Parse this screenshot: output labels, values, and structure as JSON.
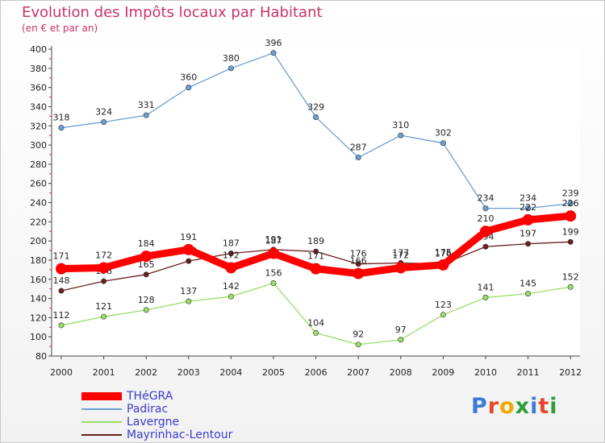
{
  "header": {
    "title": "Evolution des Impôts locaux par Habitant",
    "subtitle": "(en € et par an)"
  },
  "logo": {
    "text": "Proxiti",
    "colors": [
      "#3a7bd5",
      "#e8452c",
      "#f2a800",
      "#2e9e3a",
      "#3a7bd5",
      "#e8452c",
      "#2e9e3a"
    ]
  },
  "chart_data": {
    "type": "line",
    "title": "Evolution des Impôts locaux par Habitant",
    "subtitle": "(en € et par an)",
    "xlabel": "",
    "ylabel": "",
    "categories": [
      "2000",
      "2001",
      "2002",
      "2003",
      "2004",
      "2005",
      "2006",
      "2007",
      "2008",
      "2009",
      "2010",
      "2011",
      "2012"
    ],
    "ylim": [
      80,
      400
    ],
    "yticks": [
      80,
      100,
      120,
      140,
      160,
      180,
      200,
      220,
      240,
      260,
      280,
      300,
      320,
      340,
      360,
      380,
      400
    ],
    "grid": false,
    "legend_position": "bottom-left",
    "series": [
      {
        "name": "THéGRA",
        "color": "#ff0000",
        "values": [
          171,
          172,
          184,
          191,
          172,
          187,
          171,
          166,
          172,
          175,
          210,
          222,
          226
        ]
      },
      {
        "name": "Padirac",
        "color": "#6a9fd4",
        "values": [
          318,
          324,
          331,
          360,
          380,
          396,
          329,
          287,
          310,
          302,
          234,
          234,
          239
        ]
      },
      {
        "name": "Lavergne",
        "color": "#99dd66",
        "values": [
          112,
          121,
          128,
          137,
          142,
          156,
          104,
          92,
          97,
          123,
          141,
          145,
          152
        ]
      },
      {
        "name": "Mayrinhac-Lentour",
        "color": "#6b1f1f",
        "values": [
          148,
          158,
          165,
          179,
          187,
          191,
          189,
          176,
          177,
          176,
          194,
          197,
          199
        ]
      }
    ]
  }
}
